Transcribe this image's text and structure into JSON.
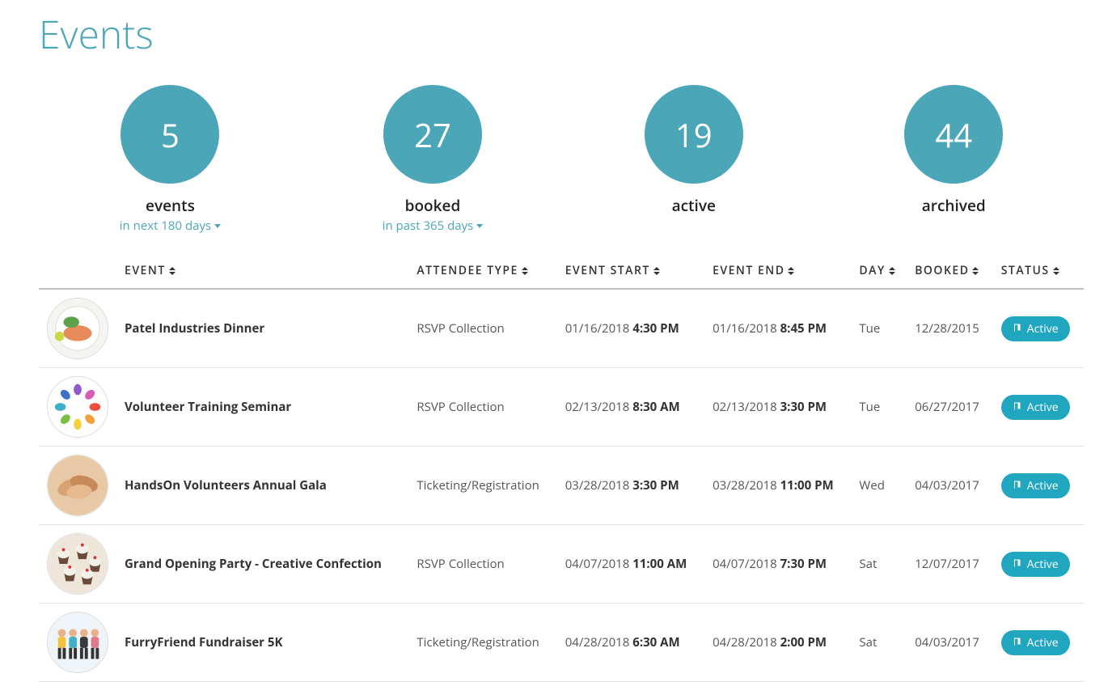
{
  "page": {
    "title": "Events"
  },
  "stats": [
    {
      "value": "5",
      "label": "events",
      "sub": "in next 180 days",
      "has_dropdown": true
    },
    {
      "value": "27",
      "label": "booked",
      "sub": "in past 365 days",
      "has_dropdown": true
    },
    {
      "value": "19",
      "label": "active",
      "sub": "",
      "has_dropdown": false
    },
    {
      "value": "44",
      "label": "archived",
      "sub": "",
      "has_dropdown": false
    }
  ],
  "columns": [
    {
      "key": "event",
      "label": "EVENT"
    },
    {
      "key": "attendee_type",
      "label": "ATTENDEE TYPE"
    },
    {
      "key": "event_start",
      "label": "EVENT START"
    },
    {
      "key": "event_end",
      "label": "EVENT END"
    },
    {
      "key": "day",
      "label": "DAY"
    },
    {
      "key": "booked",
      "label": "BOOKED"
    },
    {
      "key": "status",
      "label": "STATUS"
    }
  ],
  "rows": [
    {
      "name": "Patel Industries Dinner",
      "attendee_type": "RSVP Collection",
      "start_date": "01/16/2018",
      "start_time": "4:30 PM",
      "end_date": "01/16/2018",
      "end_time": "8:45 PM",
      "day": "Tue",
      "booked": "12/28/2015",
      "status": "Active",
      "thumb": "dinner"
    },
    {
      "name": "Volunteer Training Seminar",
      "attendee_type": "RSVP Collection",
      "start_date": "02/13/2018",
      "start_time": "8:30 AM",
      "end_date": "02/13/2018",
      "end_time": "3:30 PM",
      "day": "Tue",
      "booked": "06/27/2017",
      "status": "Active",
      "thumb": "hands-circle"
    },
    {
      "name": "HandsOn Volunteers Annual Gala",
      "attendee_type": "Ticketing/Registration",
      "start_date": "03/28/2018",
      "start_time": "3:30 PM",
      "end_date": "03/28/2018",
      "end_time": "11:00 PM",
      "day": "Wed",
      "booked": "04/03/2017",
      "status": "Active",
      "thumb": "hands-pile"
    },
    {
      "name": "Grand Opening Party - Creative Confection",
      "attendee_type": "RSVP Collection",
      "start_date": "04/07/2018",
      "start_time": "11:00 AM",
      "end_date": "04/07/2018",
      "end_time": "7:30 PM",
      "day": "Sat",
      "booked": "12/07/2017",
      "status": "Active",
      "thumb": "cupcakes"
    },
    {
      "name": "FurryFriend Fundraiser 5K",
      "attendee_type": "Ticketing/Registration",
      "start_date": "04/28/2018",
      "start_time": "6:30 AM",
      "end_date": "04/28/2018",
      "end_time": "2:00 PM",
      "day": "Sat",
      "booked": "04/03/2017",
      "status": "Active",
      "thumb": "runners"
    }
  ],
  "colors": {
    "accent": "#4ba6b8",
    "pill": "#21a6c0",
    "text": "#333333",
    "muted": "#555555",
    "border": "#e2e2e2"
  }
}
